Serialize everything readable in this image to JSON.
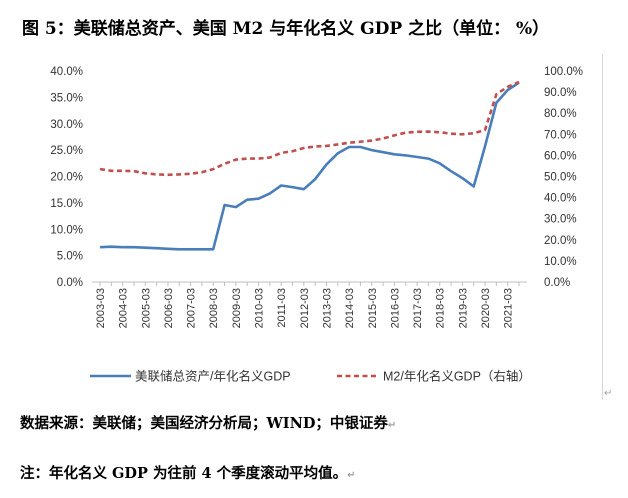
{
  "title": "图 5：美联储总资产、美国 M2 与年化名义 GDP 之比（单位：   %）",
  "source_note": "数据来源：美联储；美国经济分析局；WIND；中银证券",
  "footnote": "注：年化名义 GDP 为往前 4 个季度滚动平均值。",
  "chart_data": {
    "type": "line",
    "x": [
      "2003-03",
      "2003-09",
      "2004-03",
      "2004-09",
      "2005-03",
      "2005-09",
      "2006-03",
      "2006-09",
      "2007-03",
      "2007-09",
      "2008-03",
      "2008-09",
      "2009-03",
      "2009-09",
      "2010-03",
      "2010-09",
      "2011-03",
      "2011-09",
      "2012-03",
      "2012-09",
      "2013-03",
      "2013-09",
      "2014-03",
      "2014-09",
      "2015-03",
      "2015-09",
      "2016-03",
      "2016-09",
      "2017-03",
      "2017-09",
      "2018-03",
      "2018-09",
      "2019-03",
      "2019-09",
      "2020-03",
      "2020-09",
      "2021-03",
      "2021-09"
    ],
    "x_tick_labels": [
      "2003-03",
      "2004-03",
      "2005-03",
      "2006-03",
      "2007-03",
      "2008-03",
      "2009-03",
      "2010-03",
      "2011-03",
      "2012-03",
      "2013-03",
      "2014-03",
      "2015-03",
      "2016-03",
      "2017-03",
      "2018-03",
      "2019-03",
      "2020-03",
      "2021-03"
    ],
    "series": [
      {
        "name": "美联储总资产/年化名义GDP",
        "axis": "left",
        "color": "#4a7ebb",
        "style": "solid",
        "values": [
          6.6,
          6.7,
          6.6,
          6.6,
          6.5,
          6.4,
          6.3,
          6.2,
          6.2,
          6.2,
          6.2,
          14.6,
          14.2,
          15.6,
          15.8,
          16.8,
          18.3,
          18.0,
          17.6,
          19.5,
          22.3,
          24.4,
          25.6,
          25.6,
          25.0,
          24.6,
          24.2,
          24.0,
          23.7,
          23.4,
          22.5,
          21.0,
          19.7,
          18.1,
          25.7,
          34.0,
          36.4,
          37.8
        ]
      },
      {
        "name": "M2/年化名义GDP（右轴）",
        "axis": "right",
        "color": "#c0504d",
        "style": "dashed",
        "values": [
          53.5,
          52.7,
          52.7,
          52.5,
          51.5,
          51.0,
          50.8,
          51.0,
          51.3,
          52.0,
          53.5,
          56.0,
          58.0,
          58.5,
          58.5,
          59.0,
          61.2,
          62.0,
          63.5,
          64.2,
          64.5,
          65.2,
          66.0,
          66.5,
          67.0,
          68.0,
          69.5,
          70.8,
          71.2,
          71.3,
          71.0,
          70.3,
          70.0,
          70.5,
          72.0,
          89.0,
          92.5,
          94.8
        ]
      }
    ],
    "y_left": {
      "min": 0,
      "max": 40,
      "ticks": [
        "0.0%",
        "5.0%",
        "10.0%",
        "15.0%",
        "20.0%",
        "25.0%",
        "30.0%",
        "35.0%",
        "40.0%"
      ]
    },
    "y_right": {
      "min": 0,
      "max": 100,
      "ticks": [
        "0.0%",
        "10.0%",
        "20.0%",
        "30.0%",
        "40.0%",
        "50.0%",
        "60.0%",
        "70.0%",
        "80.0%",
        "90.0%",
        "100.0%"
      ]
    },
    "grid": false,
    "legend_position": "bottom"
  }
}
